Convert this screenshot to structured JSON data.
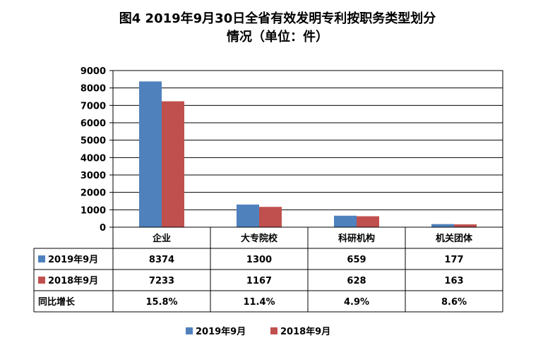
{
  "title_line1": "图4 2019年9月30日全省有效发明专利按职务类型划分",
  "title_line2": "情况（单位：件）",
  "chart_data": {
    "type": "bar",
    "categories": [
      "企业",
      "大专院校",
      "科研机构",
      "机关团体"
    ],
    "series": [
      {
        "name": "2019年9月",
        "values": [
          8374,
          1300,
          659,
          177
        ],
        "color": "#4F81BD"
      },
      {
        "name": "2018年9月",
        "values": [
          7233,
          1167,
          628,
          163
        ],
        "color": "#C0504D"
      }
    ],
    "ylim": [
      0,
      9000
    ],
    "yticks": [
      0,
      1000,
      2000,
      3000,
      4000,
      5000,
      6000,
      7000,
      8000,
      9000
    ],
    "grid": true,
    "legend_position": "bottom",
    "table_extra_row": {
      "label": "同比增长",
      "values": [
        "15.8%",
        "11.4%",
        "4.9%",
        "8.6%"
      ]
    }
  }
}
